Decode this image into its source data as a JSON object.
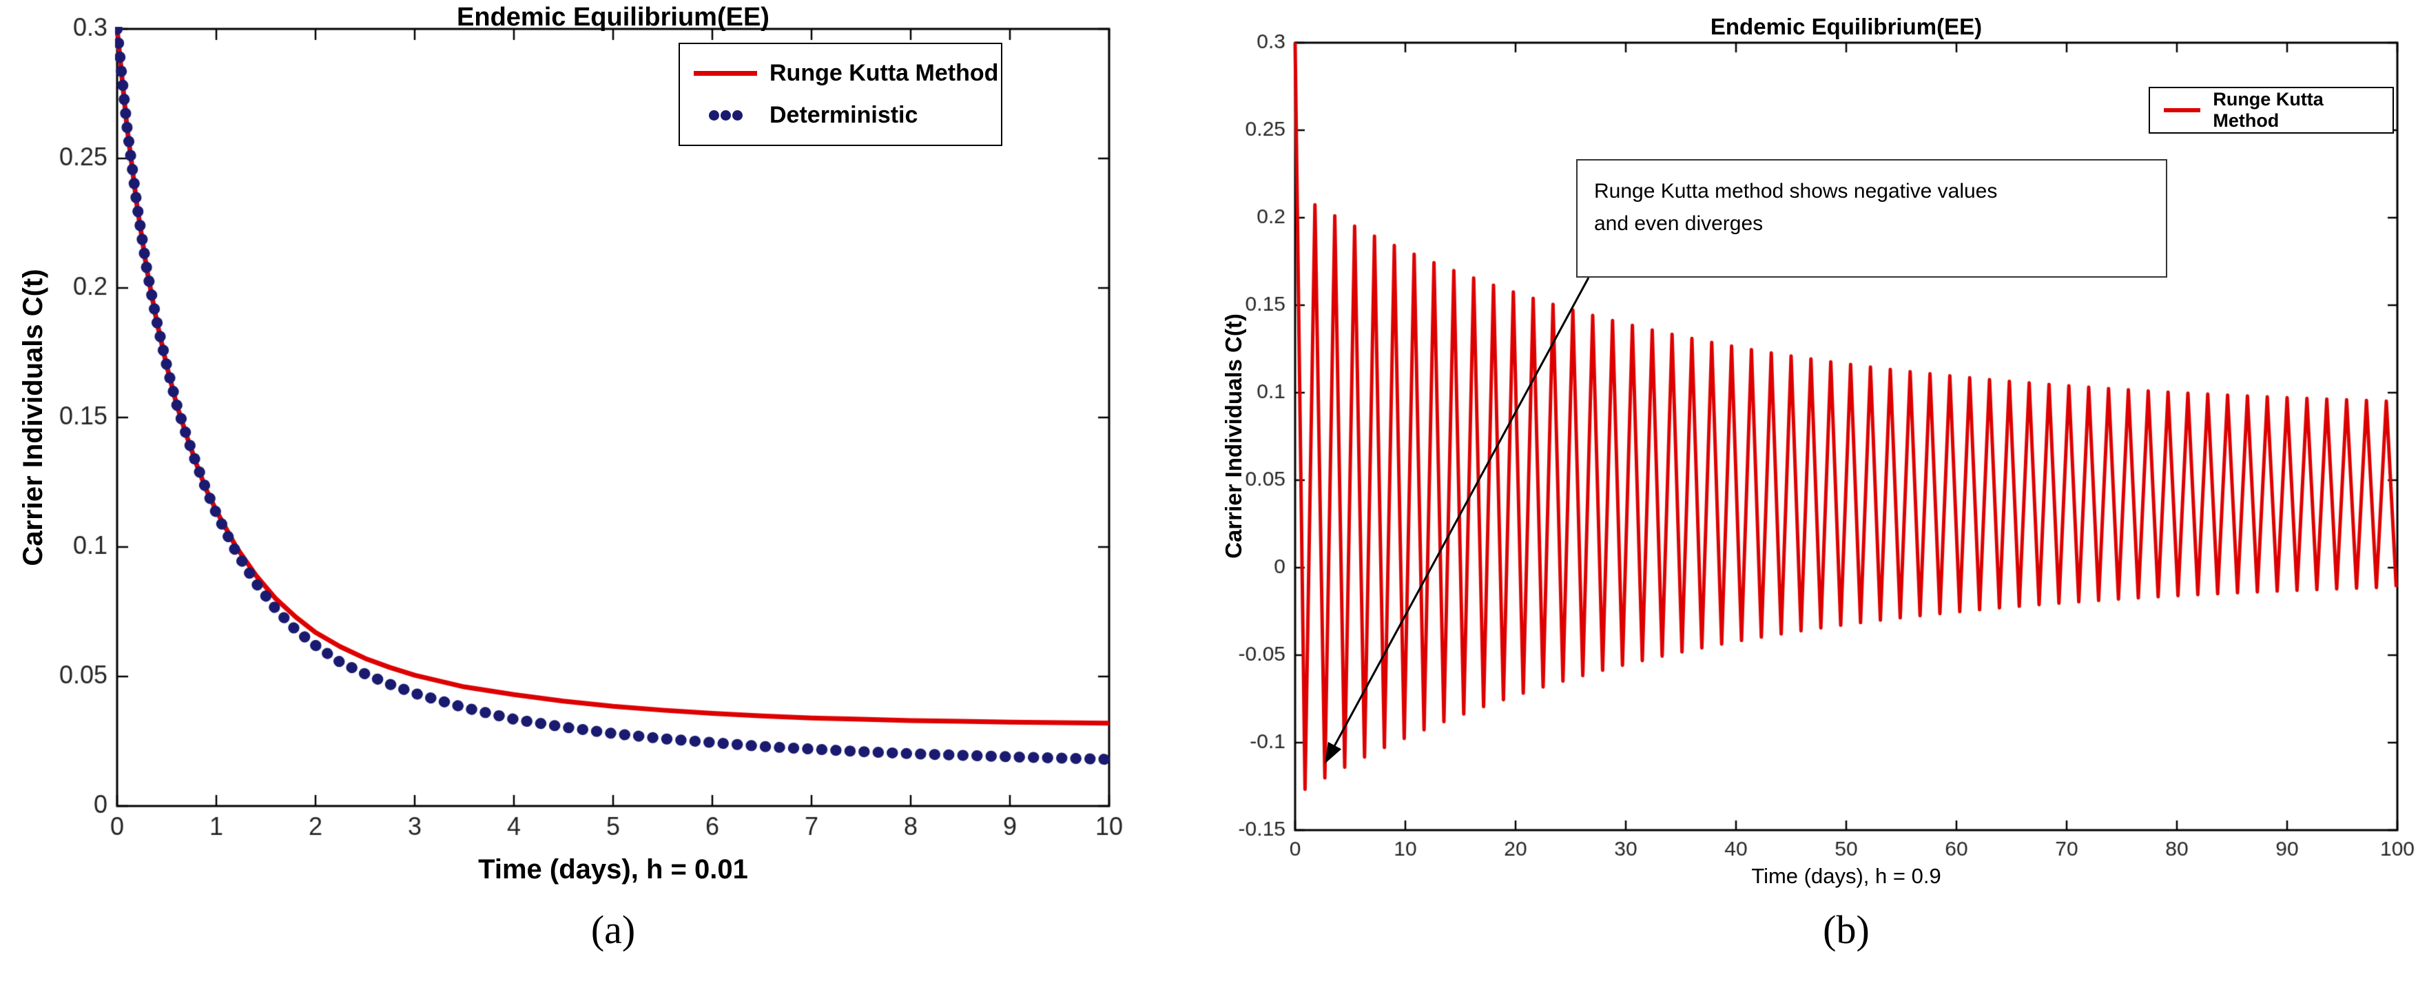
{
  "panels": [
    {
      "caption": "(a)"
    },
    {
      "caption": "(b)"
    }
  ],
  "colors": {
    "runge_kutta_red": "#dd0000",
    "deterministic_navy": "#1a1a70",
    "axes_black": "#000000",
    "tick_text": "#262626"
  },
  "chart_data": [
    {
      "type": "line",
      "title": "Endemic Equilibrium(EE)",
      "xlabel": "Time (days), h = 0.01",
      "ylabel": "Carrier Individuals C(t)",
      "xlim": [
        0,
        10
      ],
      "ylim": [
        0,
        0.3
      ],
      "grid": false,
      "legend_position": "top-right",
      "xticks": [
        0,
        1,
        2,
        3,
        4,
        5,
        6,
        7,
        8,
        9,
        10
      ],
      "xtick_labels": [
        "0",
        "1",
        "2",
        "3",
        "4",
        "5",
        "6",
        "7",
        "8",
        "9",
        "10"
      ],
      "yticks": [
        0,
        0.05,
        0.1,
        0.15,
        0.2,
        0.25,
        0.3
      ],
      "ytick_labels": [
        "0",
        "0.05",
        "0.1",
        "0.15",
        "0.2",
        "0.25",
        "0.3"
      ],
      "series": [
        {
          "name": "Runge Kutta Method",
          "color": "#dd0000",
          "line": "solid",
          "width": 7,
          "x": [
            0,
            0.1,
            0.2,
            0.3,
            0.4,
            0.5,
            0.6,
            0.7,
            0.8,
            0.9,
            1,
            1.2,
            1.4,
            1.6,
            1.8,
            2,
            2.25,
            2.5,
            2.75,
            3,
            3.5,
            4,
            4.5,
            5,
            5.5,
            6,
            6.5,
            7,
            7.5,
            8,
            8.5,
            9,
            9.5,
            10
          ],
          "y": [
            0.3,
            0.262,
            0.232,
            0.207,
            0.187,
            0.17,
            0.155,
            0.143,
            0.132,
            0.122,
            0.114,
            0.1,
            0.089,
            0.08,
            0.073,
            0.067,
            0.0615,
            0.057,
            0.0535,
            0.0505,
            0.046,
            0.043,
            0.0405,
            0.0385,
            0.037,
            0.0358,
            0.0348,
            0.034,
            0.0335,
            0.033,
            0.0327,
            0.0324,
            0.0322,
            0.032
          ]
        },
        {
          "name": "Deterministic",
          "color": "#1a1a70",
          "line": "dotted",
          "width": 16,
          "x": [
            0,
            0.1,
            0.2,
            0.3,
            0.4,
            0.5,
            0.6,
            0.7,
            0.8,
            0.9,
            1,
            1.2,
            1.4,
            1.6,
            1.8,
            2,
            2.25,
            2.5,
            2.75,
            3,
            3.5,
            4,
            4.5,
            5,
            5.5,
            6,
            6.5,
            7,
            7.5,
            8,
            8.5,
            9,
            9.5,
            10
          ],
          "y": [
            0.3,
            0.262,
            0.232,
            0.207,
            0.187,
            0.17,
            0.155,
            0.143,
            0.132,
            0.122,
            0.113,
            0.098,
            0.086,
            0.076,
            0.068,
            0.062,
            0.0555,
            0.051,
            0.047,
            0.0435,
            0.038,
            0.0335,
            0.0305,
            0.028,
            0.026,
            0.0245,
            0.023,
            0.022,
            0.021,
            0.0202,
            0.0196,
            0.019,
            0.0185,
            0.018
          ]
        }
      ]
    },
    {
      "type": "line",
      "title": "Endemic Equilibrium(EE)",
      "xlabel": "Time (days), h = 0.9",
      "ylabel": "Carrier Individuals C(t)",
      "xlim": [
        0,
        100
      ],
      "ylim": [
        -0.15,
        0.3
      ],
      "grid": false,
      "legend_position": "top-right",
      "xticks": [
        0,
        10,
        20,
        30,
        40,
        50,
        60,
        70,
        80,
        90,
        100
      ],
      "xtick_labels": [
        "0",
        "10",
        "20",
        "30",
        "40",
        "50",
        "60",
        "70",
        "80",
        "90",
        "100"
      ],
      "yticks": [
        -0.15,
        -0.1,
        -0.05,
        0,
        0.05,
        0.1,
        0.15,
        0.2,
        0.25,
        0.3
      ],
      "ytick_labels": [
        "-0.15",
        "-0.1",
        "-0.05",
        "0",
        "0.05",
        "0.1",
        "0.15",
        "0.2",
        "0.25",
        "0.3"
      ],
      "annotation": {
        "lines": [
          "Runge Kutta method shows negative values",
          "and even diverges"
        ],
        "arrow_target": {
          "x": 2.7,
          "y": -0.112
        }
      },
      "envelope_top": {
        "t": [
          0,
          10,
          20,
          30,
          50,
          70,
          100
        ],
        "y": [
          0.21,
          0.18,
          0.16,
          0.14,
          0.12,
          0.1,
          0.092
        ]
      },
      "envelope_bottom": {
        "t": [
          0,
          10,
          20,
          30,
          50,
          70,
          100
        ],
        "y": [
          -0.13,
          -0.1,
          -0.08,
          -0.055,
          -0.035,
          -0.02,
          -0.012
        ]
      },
      "series": [
        {
          "name": "Runge Kutta Method",
          "color": "#dd0000",
          "line": "solid",
          "width": 5,
          "oscillation": {
            "initial_time": 0,
            "initial_value": 0.3,
            "step": 0.9,
            "period": 1.8,
            "t_end": 100,
            "baseline": 0.042,
            "amp_base": 0.047,
            "amp_decay": 0.125,
            "tau": 33
          }
        }
      ]
    }
  ]
}
